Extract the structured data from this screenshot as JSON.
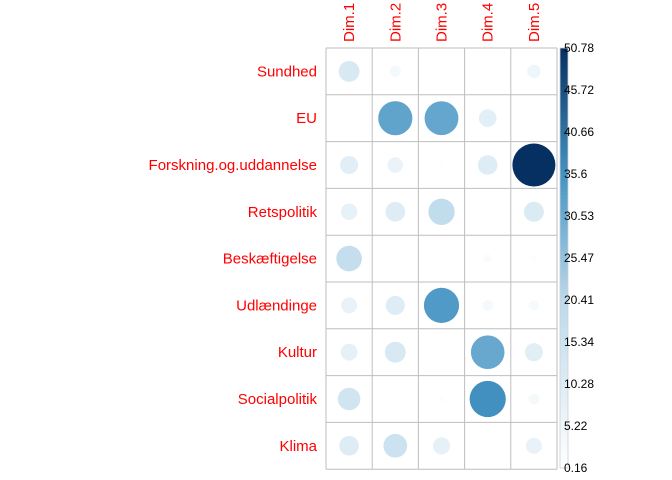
{
  "chart_data": {
    "type": "heatmap",
    "subtype": "correlation-circle-plot",
    "rows": [
      "Sundhed",
      "EU",
      "Forskning.og.uddannelse",
      "Retspolitik",
      "Beskæftigelse",
      "Udlændinge",
      "Kultur",
      "Socialpolitik",
      "Klima"
    ],
    "columns": [
      "Dim.1",
      "Dim.2",
      "Dim.3",
      "Dim.4",
      "Dim.5"
    ],
    "values": [
      [
        12.0,
        3.5,
        0.7,
        0.6,
        5.0
      ],
      [
        0.2,
        32.0,
        31.5,
        8.5,
        0.6
      ],
      [
        9.0,
        6.5,
        0.8,
        10.5,
        50.78
      ],
      [
        7.5,
        10.5,
        19.0,
        0.2,
        11.0
      ],
      [
        18.0,
        0.5,
        0.2,
        2.0,
        1.2
      ],
      [
        7.0,
        10.0,
        34.0,
        3.2,
        3.0
      ],
      [
        7.8,
        12.0,
        0.2,
        31.0,
        9.0
      ],
      [
        14.0,
        0.2,
        1.2,
        36.0,
        3.2
      ],
      [
        10.5,
        15.5,
        8.0,
        0.2,
        7.2
      ]
    ],
    "colorbar": {
      "ticks": [
        "50.78",
        "45.72",
        "40.66",
        "35.6",
        "30.53",
        "25.47",
        "20.41",
        "15.34",
        "10.28",
        "5.22",
        "0.16"
      ],
      "min": 0.16,
      "max": 50.78
    },
    "colors": {
      "label_text": "#ff0000",
      "grid": "#bebebe",
      "low": "#ffffff",
      "mid": "#bcd9eb",
      "midhigh": "#4393c3",
      "high": "#053061"
    },
    "title": "",
    "xlabel": "",
    "ylabel": ""
  }
}
